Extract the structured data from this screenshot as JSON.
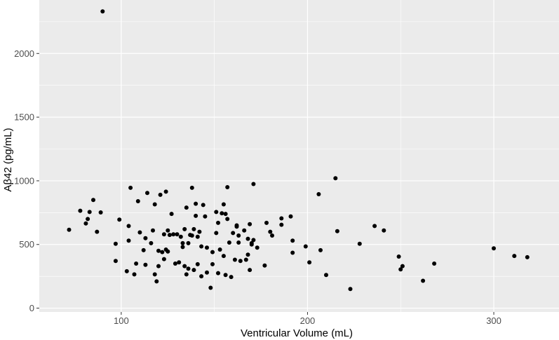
{
  "chart_data": {
    "type": "scatter",
    "title": "",
    "xlabel": "Ventricular Volume (mL)",
    "ylabel": "Aβ42 (pg/mL)",
    "xlim": [
      56,
      335
    ],
    "ylim": [
      -30,
      2420
    ],
    "x_ticks": [
      100,
      200,
      300
    ],
    "x_tick_labels": [
      "100",
      "200",
      "300"
    ],
    "y_ticks": [
      0,
      500,
      1000,
      1500,
      2000
    ],
    "y_tick_labels": [
      "0",
      "500",
      "1000",
      "1500",
      "2000"
    ],
    "grid": true,
    "legend": "none",
    "colors": {
      "panel": "#EBEBEB",
      "grid": "#FFFFFF",
      "point": "#000000",
      "tick": "#4D4D4D"
    },
    "points": [
      [
        90,
        2330
      ],
      [
        72,
        615
      ],
      [
        78,
        765
      ],
      [
        81,
        665
      ],
      [
        82,
        700
      ],
      [
        83,
        755
      ],
      [
        85,
        850
      ],
      [
        87,
        600
      ],
      [
        89,
        752
      ],
      [
        97,
        505
      ],
      [
        97,
        370
      ],
      [
        99,
        695
      ],
      [
        103,
        290
      ],
      [
        104,
        645
      ],
      [
        104,
        530
      ],
      [
        105,
        945
      ],
      [
        107,
        265
      ],
      [
        108,
        350
      ],
      [
        109,
        840
      ],
      [
        110,
        595
      ],
      [
        112,
        455
      ],
      [
        113,
        550
      ],
      [
        113,
        340
      ],
      [
        114,
        905
      ],
      [
        116,
        510
      ],
      [
        117,
        610
      ],
      [
        118,
        265
      ],
      [
        118,
        815
      ],
      [
        119,
        210
      ],
      [
        120,
        330
      ],
      [
        120,
        450
      ],
      [
        121,
        890
      ],
      [
        122,
        440
      ],
      [
        123,
        580
      ],
      [
        123,
        385
      ],
      [
        124,
        915
      ],
      [
        124,
        460
      ],
      [
        125,
        445
      ],
      [
        125,
        610
      ],
      [
        126,
        575
      ],
      [
        127,
        740
      ],
      [
        128,
        580
      ],
      [
        129,
        350
      ],
      [
        130,
        580
      ],
      [
        131,
        360
      ],
      [
        132,
        560
      ],
      [
        133,
        480
      ],
      [
        133,
        510
      ],
      [
        134,
        620
      ],
      [
        135,
        790
      ],
      [
        134,
        330
      ],
      [
        135,
        265
      ],
      [
        136,
        310
      ],
      [
        137,
        575
      ],
      [
        138,
        570
      ],
      [
        136,
        510
      ],
      [
        138,
        945
      ],
      [
        139,
        620
      ],
      [
        139,
        300
      ],
      [
        140,
        725
      ],
      [
        140,
        820
      ],
      [
        141,
        345
      ],
      [
        141,
        560
      ],
      [
        142,
        600
      ],
      [
        143,
        485
      ],
      [
        144,
        810
      ],
      [
        143,
        250
      ],
      [
        145,
        720
      ],
      [
        146,
        280
      ],
      [
        146,
        475
      ],
      [
        148,
        160
      ],
      [
        149,
        345
      ],
      [
        149,
        440
      ],
      [
        151,
        590
      ],
      [
        151,
        755
      ],
      [
        152,
        670
      ],
      [
        152,
        275
      ],
      [
        153,
        460
      ],
      [
        154,
        745
      ],
      [
        155,
        410
      ],
      [
        155,
        815
      ],
      [
        156,
        260
      ],
      [
        156,
        740
      ],
      [
        157,
        950
      ],
      [
        157,
        700
      ],
      [
        158,
        515
      ],
      [
        159,
        245
      ],
      [
        160,
        590
      ],
      [
        161,
        380
      ],
      [
        162,
        640
      ],
      [
        162,
        650
      ],
      [
        163,
        570
      ],
      [
        163,
        515
      ],
      [
        164,
        370
      ],
      [
        166,
        610
      ],
      [
        167,
        380
      ],
      [
        168,
        545
      ],
      [
        168,
        420
      ],
      [
        169,
        300
      ],
      [
        169,
        660
      ],
      [
        170,
        500
      ],
      [
        170,
        510
      ],
      [
        171,
        535
      ],
      [
        171,
        975
      ],
      [
        173,
        475
      ],
      [
        177,
        335
      ],
      [
        178,
        670
      ],
      [
        180,
        600
      ],
      [
        181,
        570
      ],
      [
        186,
        705
      ],
      [
        186,
        655
      ],
      [
        191,
        720
      ],
      [
        192,
        530
      ],
      [
        192,
        435
      ],
      [
        199,
        485
      ],
      [
        201,
        360
      ],
      [
        206,
        895
      ],
      [
        207,
        455
      ],
      [
        210,
        260
      ],
      [
        215,
        1020
      ],
      [
        216,
        605
      ],
      [
        223,
        150
      ],
      [
        228,
        505
      ],
      [
        236,
        645
      ],
      [
        241,
        610
      ],
      [
        249,
        405
      ],
      [
        250,
        305
      ],
      [
        251,
        330
      ],
      [
        262,
        215
      ],
      [
        268,
        350
      ],
      [
        300,
        470
      ],
      [
        311,
        410
      ],
      [
        318,
        400
      ]
    ]
  }
}
